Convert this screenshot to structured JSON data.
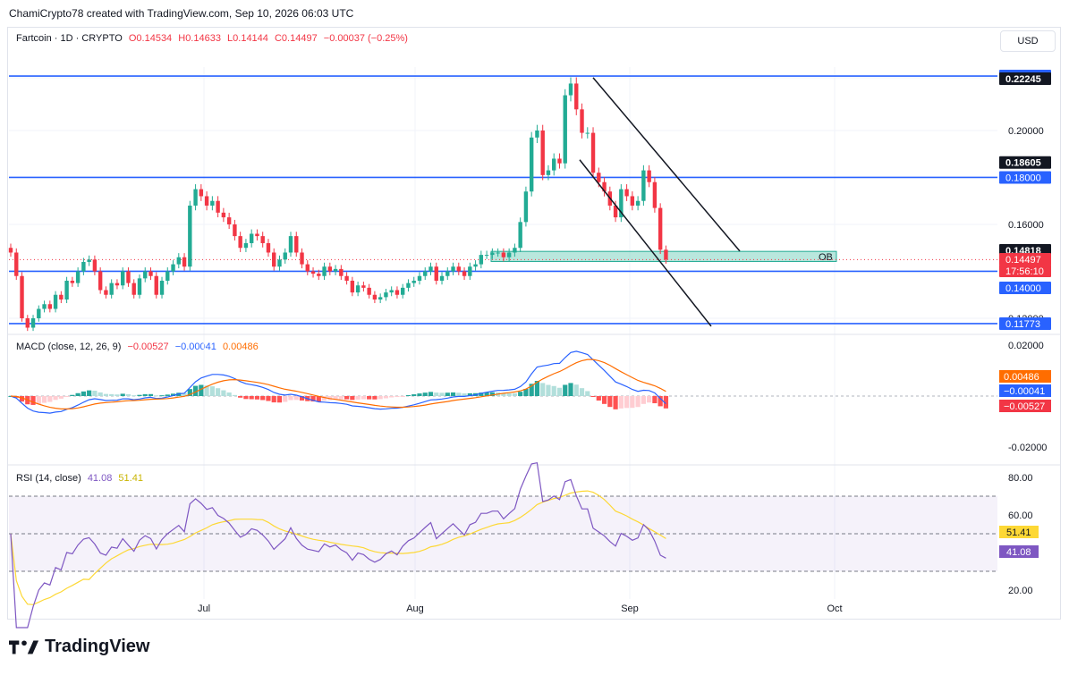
{
  "header": {
    "caption": "ChamiCrypto78 created with TradingView.com, Sep 10, 2026 06:03 UTC"
  },
  "symbol": {
    "name": "Fartcoin · 1D · CRYPTO",
    "open": "O0.14534",
    "high": "H0.14633",
    "low": "L0.14144",
    "close": "C0.14497",
    "change": "−0.00037 (−0.25%)"
  },
  "currency_button": "USD",
  "colors": {
    "up": "#22ab94",
    "down": "#f23645",
    "level": "#2962ff",
    "ob_fill": "#7fd3c1",
    "macd": "#2962ff",
    "signal": "#ff6d00",
    "rsi": "#7e57c2",
    "rsi_ma": "#fdd835"
  },
  "chart_data": {
    "type": "candlestick",
    "price_ticks": [
      "0.22245",
      "0.20000",
      "0.18000",
      "0.16000",
      "0.14000",
      "0.12000"
    ],
    "horizontal_levels": [
      0.22319,
      0.18,
      0.14,
      0.11773
    ],
    "price_labels": [
      {
        "text": "0.22319",
        "style": "level"
      },
      {
        "text": "0.22245",
        "style": "dark"
      },
      {
        "text": "0.18605",
        "style": "dark"
      },
      {
        "text": "0.18000",
        "style": "level"
      },
      {
        "text": "0.14818",
        "style": "dark"
      },
      {
        "text": "0.14497",
        "style": "red"
      },
      {
        "text": "17:56:10",
        "style": "red"
      },
      {
        "text": "0.14000",
        "style": "level"
      },
      {
        "text": "0.11773",
        "style": "level"
      }
    ],
    "ob_zone": {
      "label": "OB",
      "top": 0.1485,
      "bottom": 0.1442
    },
    "x_ticks": [
      "Jul",
      "Aug",
      "Sep",
      "Oct"
    ],
    "closes": [
      0.148,
      0.138,
      0.12,
      0.116,
      0.12,
      0.124,
      0.126,
      0.124,
      0.13,
      0.128,
      0.136,
      0.135,
      0.14,
      0.144,
      0.145,
      0.14,
      0.132,
      0.13,
      0.135,
      0.134,
      0.14,
      0.135,
      0.13,
      0.137,
      0.14,
      0.138,
      0.13,
      0.136,
      0.14,
      0.143,
      0.146,
      0.142,
      0.168,
      0.175,
      0.172,
      0.168,
      0.17,
      0.165,
      0.163,
      0.16,
      0.155,
      0.15,
      0.152,
      0.156,
      0.155,
      0.152,
      0.148,
      0.142,
      0.145,
      0.148,
      0.155,
      0.148,
      0.143,
      0.14,
      0.139,
      0.138,
      0.142,
      0.14,
      0.141,
      0.138,
      0.136,
      0.131,
      0.134,
      0.133,
      0.13,
      0.128,
      0.129,
      0.131,
      0.132,
      0.13,
      0.133,
      0.135,
      0.136,
      0.138,
      0.14,
      0.142,
      0.136,
      0.138,
      0.14,
      0.142,
      0.14,
      0.138,
      0.142,
      0.143,
      0.147,
      0.147,
      0.148,
      0.148,
      0.146,
      0.148,
      0.15,
      0.161,
      0.174,
      0.197,
      0.2,
      0.181,
      0.183,
      0.188,
      0.186,
      0.215,
      0.22,
      0.209,
      0.199,
      0.199,
      0.182,
      0.178,
      0.174,
      0.168,
      0.163,
      0.175,
      0.172,
      0.168,
      0.17,
      0.183,
      0.178,
      0.167,
      0.1492,
      0.145
    ],
    "macd_ticks": [
      "0.02000",
      "-0.02000"
    ],
    "macd_labels": [
      {
        "text": "0.00486",
        "color": "#ff6d00"
      },
      {
        "text": "−0.00041",
        "color": "#2962ff"
      },
      {
        "text": "−0.00527",
        "color": "#f23645"
      }
    ],
    "macd": {
      "legend": "MACD (close, 12, 26, 9)",
      "hist": "−0.00527",
      "macd": "−0.00041",
      "signal": "0.00486"
    },
    "rsi_ticks": [
      "80.00",
      "60.00",
      "20.00"
    ],
    "rsi_bands": [
      70,
      50,
      30
    ],
    "rsi": {
      "legend": "RSI (14, close)",
      "value": "41.08",
      "ma": "51.41"
    },
    "rsi_labels": [
      {
        "text": "51.41",
        "color": "#fdd835",
        "fg": "#131722"
      },
      {
        "text": "41.08",
        "color": "#7e57c2",
        "fg": "#ffffff"
      }
    ]
  },
  "footer": {
    "brand": "TradingView"
  }
}
